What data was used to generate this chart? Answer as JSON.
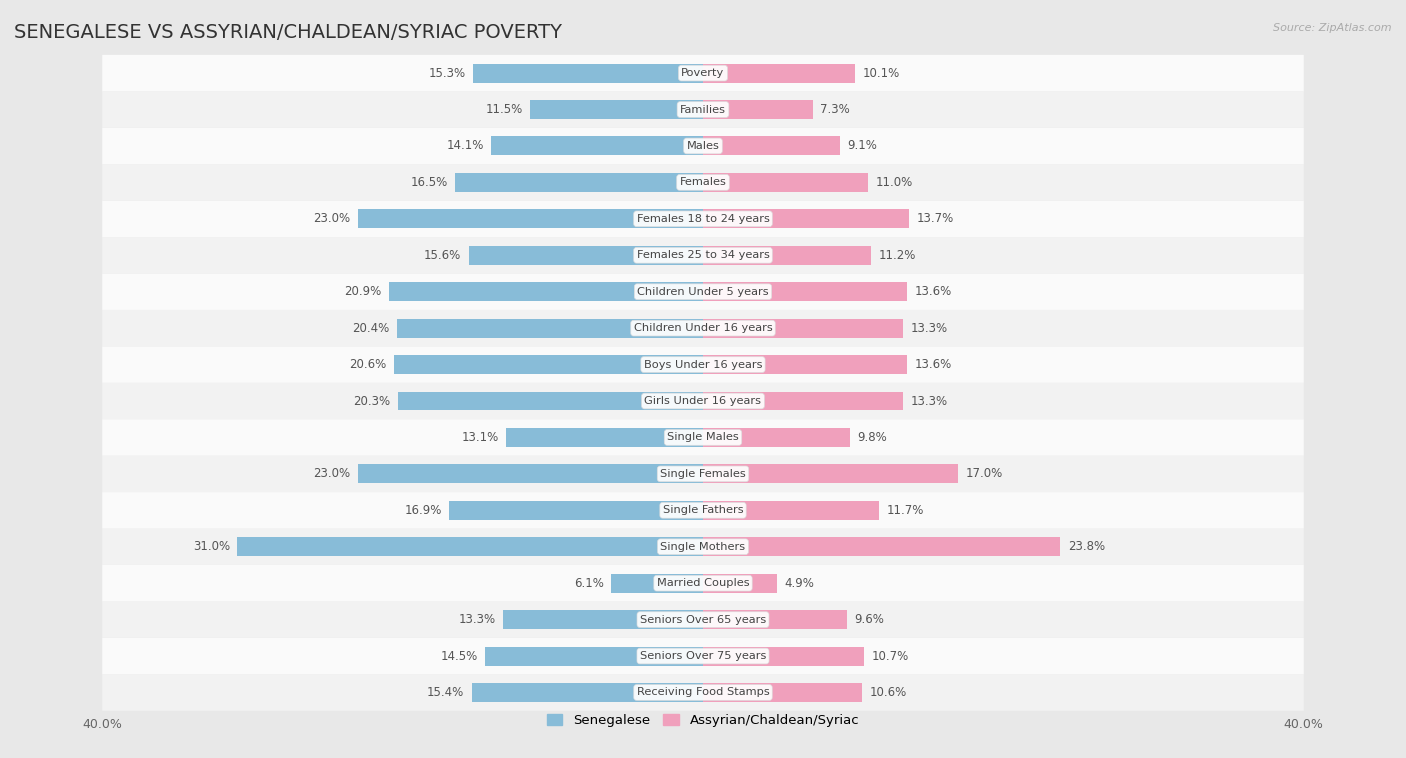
{
  "title": "SENEGALESE VS ASSYRIAN/CHALDEAN/SYRIAC POVERTY",
  "source": "Source: ZipAtlas.com",
  "categories": [
    "Poverty",
    "Families",
    "Males",
    "Females",
    "Females 18 to 24 years",
    "Females 25 to 34 years",
    "Children Under 5 years",
    "Children Under 16 years",
    "Boys Under 16 years",
    "Girls Under 16 years",
    "Single Males",
    "Single Females",
    "Single Fathers",
    "Single Mothers",
    "Married Couples",
    "Seniors Over 65 years",
    "Seniors Over 75 years",
    "Receiving Food Stamps"
  ],
  "senegalese": [
    15.3,
    11.5,
    14.1,
    16.5,
    23.0,
    15.6,
    20.9,
    20.4,
    20.6,
    20.3,
    13.1,
    23.0,
    16.9,
    31.0,
    6.1,
    13.3,
    14.5,
    15.4
  ],
  "assyrian": [
    10.1,
    7.3,
    9.1,
    11.0,
    13.7,
    11.2,
    13.6,
    13.3,
    13.6,
    13.3,
    9.8,
    17.0,
    11.7,
    23.8,
    4.9,
    9.6,
    10.7,
    10.6
  ],
  "senegalese_color": "#88BCD8",
  "assyrian_color": "#F0A0BC",
  "bg_color": "#f0f0f0",
  "row_color_odd": "#f7f7f7",
  "row_color_even": "#ebebeb",
  "xlim": 40.0,
  "bar_height": 0.52,
  "title_fontsize": 14,
  "label_fontsize": 9,
  "legend_label_sen": "Senegalese",
  "legend_label_ass": "Assyrian/Chaldean/Syriac"
}
